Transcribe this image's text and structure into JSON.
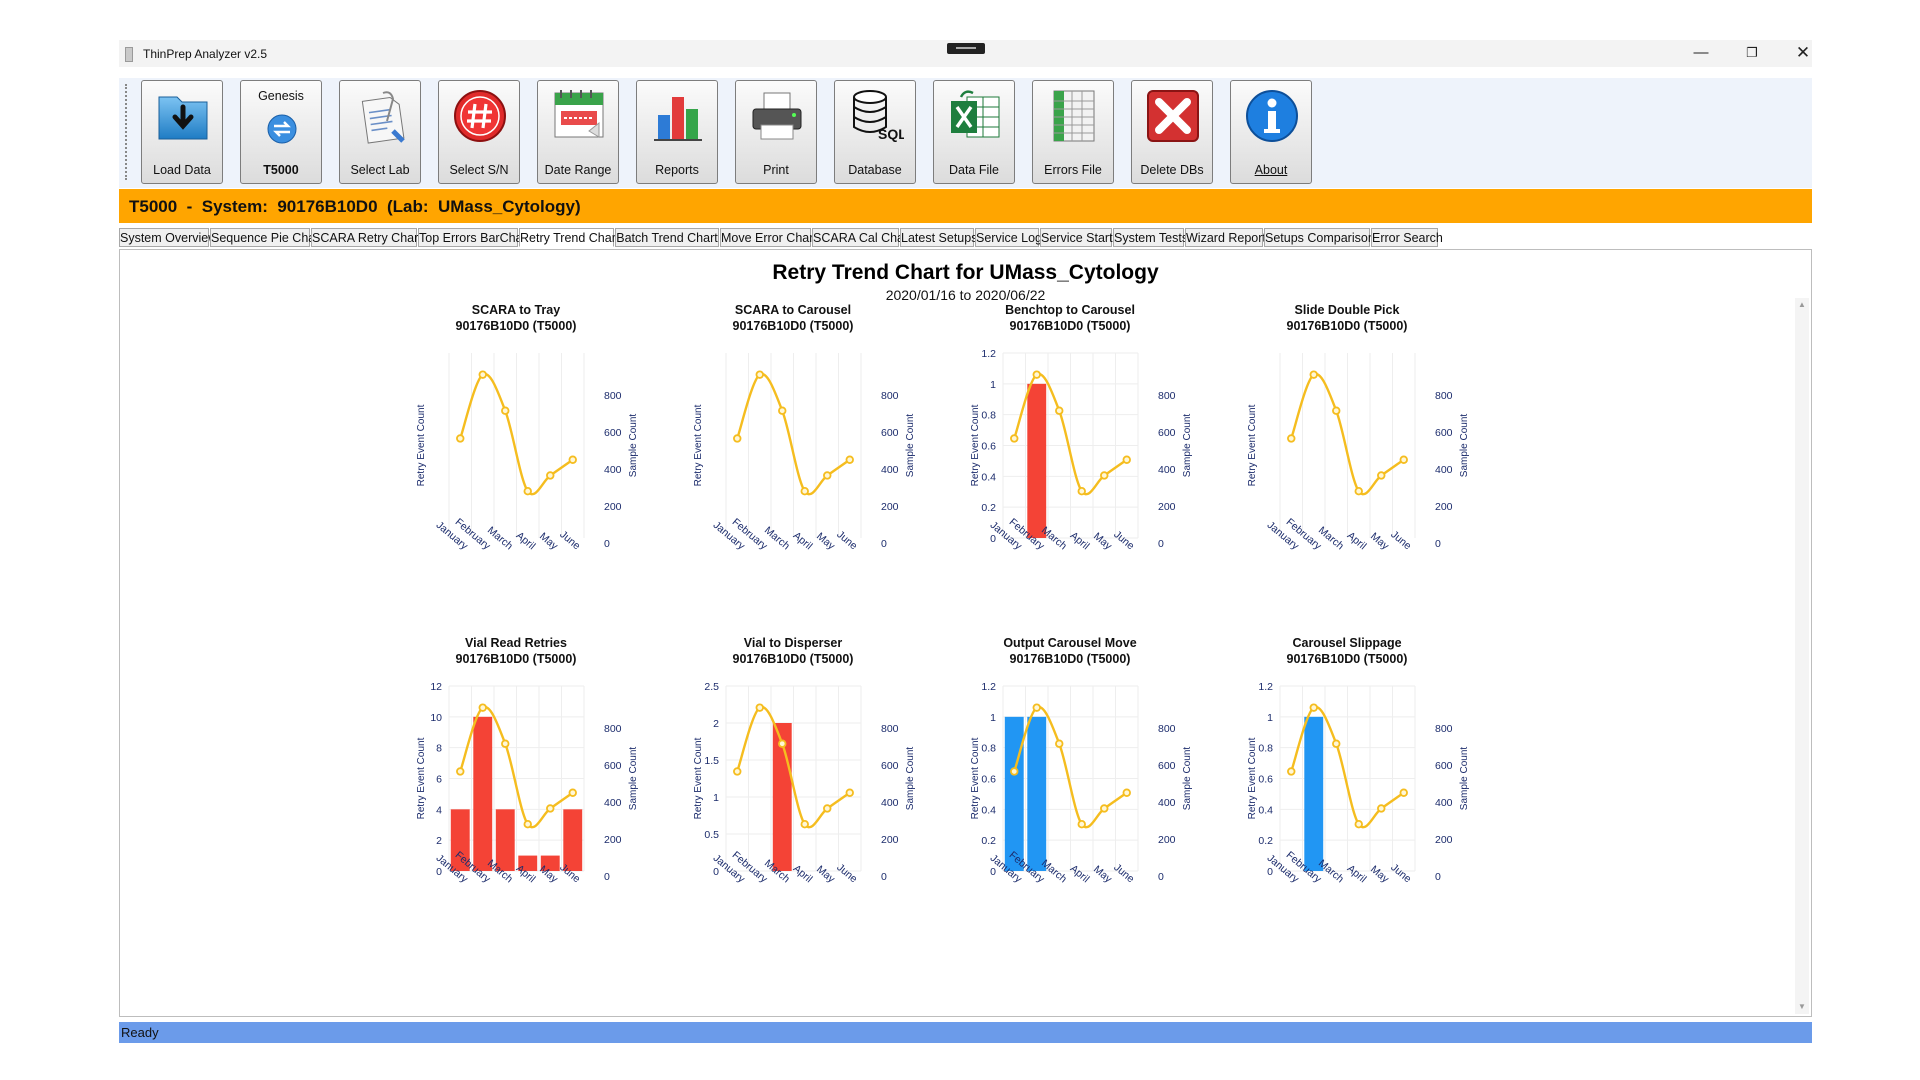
{
  "window": {
    "title": "ThinPrep Analyzer v2.5",
    "minimize": "—",
    "maximize": "❐",
    "close": "✕"
  },
  "toolbar": {
    "buttons": [
      {
        "label": "Load Data",
        "icon": "load-data-icon"
      },
      {
        "label": "T5000",
        "top_label": "Genesis",
        "icon": "switch-arrows-icon"
      },
      {
        "label": "Select Lab",
        "icon": "clipboard-icon"
      },
      {
        "label": "Select S/N",
        "icon": "hash-icon"
      },
      {
        "label": "Date Range",
        "icon": "calendar-icon"
      },
      {
        "label": "Reports",
        "icon": "bar-chart-icon"
      },
      {
        "label": "Print",
        "icon": "printer-icon"
      },
      {
        "label": "Database",
        "icon": "database-sql-icon"
      },
      {
        "label": "Data File",
        "icon": "excel-icon"
      },
      {
        "label": "Errors File",
        "icon": "spreadsheet-icon"
      },
      {
        "label": "Delete DBs",
        "icon": "delete-x-icon"
      },
      {
        "label": "About",
        "icon": "info-icon"
      }
    ]
  },
  "system_bar": {
    "title": "T5000  -  System:  90176B10D0  (Lab:  UMass_Cytology)"
  },
  "tabs": [
    {
      "label": "System Overview"
    },
    {
      "label": "Sequence Pie Chart"
    },
    {
      "label": "SCARA Retry Chart"
    },
    {
      "label": "Top Errors BarChart"
    },
    {
      "label": "Retry Trend Chart",
      "active": true
    },
    {
      "label": "Batch Trend Chart"
    },
    {
      "label": "Move Error Chart"
    },
    {
      "label": "SCARA Cal Chart"
    },
    {
      "label": "Latest Setups"
    },
    {
      "label": "Service Log"
    },
    {
      "label": "Service Starts"
    },
    {
      "label": "System Tests"
    },
    {
      "label": "Wizard Report"
    },
    {
      "label": "Setups Comparison"
    },
    {
      "label": "Error Search"
    }
  ],
  "content": {
    "title": "Retry Trend Chart for UMass_Cytology",
    "date_range": "2020/01/16 to 2020/06/22"
  },
  "status": {
    "text": "Ready"
  },
  "colors": {
    "line": "#f5bd1f",
    "red_bar": "#f44336",
    "blue_bar": "#2196f3",
    "status_bar": "#6b9bea",
    "system_bar": "#ffa500"
  },
  "chart_data": [
    {
      "type": "bar",
      "title": "SCARA to Tray",
      "subtitle": "90176B10D0 (T5000)",
      "categories": [
        "January",
        "February",
        "March",
        "April",
        "May",
        "June"
      ],
      "series": [
        {
          "name": "Retry Event Count",
          "values": [
            0,
            0,
            0,
            0,
            0,
            0
          ],
          "color": "#f44336"
        },
        {
          "name": "Sample Count",
          "type": "line",
          "axis": "right",
          "values": [
            565,
            910,
            715,
            280,
            365,
            450
          ]
        }
      ],
      "xlabel": "",
      "ylabel": "Retry Event Count",
      "y2label": "Sample Count",
      "yticks": [],
      "y2ticks": [
        "0",
        "200",
        "400",
        "600",
        "800"
      ],
      "ylim": [
        0,
        1
      ],
      "y2lim": [
        0,
        1000
      ]
    },
    {
      "type": "bar",
      "title": "SCARA to Carousel",
      "subtitle": "90176B10D0 (T5000)",
      "categories": [
        "January",
        "February",
        "March",
        "April",
        "May",
        "June"
      ],
      "series": [
        {
          "name": "Retry Event Count",
          "values": [
            0,
            0,
            0,
            0,
            0,
            0
          ],
          "color": "#f44336"
        },
        {
          "name": "Sample Count",
          "type": "line",
          "axis": "right",
          "values": [
            565,
            910,
            715,
            280,
            365,
            450
          ]
        }
      ],
      "xlabel": "",
      "ylabel": "Retry Event Count",
      "y2label": "Sample Count",
      "yticks": [],
      "y2ticks": [
        "0",
        "200",
        "400",
        "600",
        "800"
      ],
      "ylim": [
        0,
        1
      ],
      "y2lim": [
        0,
        1000
      ]
    },
    {
      "type": "bar",
      "title": "Benchtop to Carousel",
      "subtitle": "90176B10D0 (T5000)",
      "categories": [
        "January",
        "February",
        "March",
        "April",
        "May",
        "June"
      ],
      "series": [
        {
          "name": "Retry Event Count",
          "values": [
            0,
            1,
            0,
            0,
            0,
            0
          ],
          "color": "#f44336"
        },
        {
          "name": "Sample Count",
          "type": "line",
          "axis": "right",
          "values": [
            565,
            910,
            715,
            280,
            365,
            450
          ]
        }
      ],
      "xlabel": "",
      "ylabel": "Retry Event Count",
      "y2label": "Sample Count",
      "yticks": [
        "0",
        "0.2",
        "0.4",
        "0.6",
        "0.8",
        "1",
        "1.2"
      ],
      "y2ticks": [
        "0",
        "200",
        "400",
        "600",
        "800"
      ],
      "ylim": [
        0,
        1.2
      ],
      "y2lim": [
        0,
        1000
      ]
    },
    {
      "type": "bar",
      "title": "Slide Double Pick",
      "subtitle": "90176B10D0 (T5000)",
      "categories": [
        "January",
        "February",
        "March",
        "April",
        "May",
        "June"
      ],
      "series": [
        {
          "name": "Retry Event Count",
          "values": [
            0,
            0,
            0,
            0,
            0,
            0
          ],
          "color": "#f44336"
        },
        {
          "name": "Sample Count",
          "type": "line",
          "axis": "right",
          "values": [
            565,
            910,
            715,
            280,
            365,
            450
          ]
        }
      ],
      "xlabel": "",
      "ylabel": "Retry Event Count",
      "y2label": "Sample Count",
      "yticks": [],
      "y2ticks": [
        "0",
        "200",
        "400",
        "600",
        "800"
      ],
      "ylim": [
        0,
        1
      ],
      "y2lim": [
        0,
        1000
      ]
    },
    {
      "type": "bar",
      "title": "Vial Read Retries",
      "subtitle": "90176B10D0 (T5000)",
      "categories": [
        "January",
        "February",
        "March",
        "April",
        "May",
        "June"
      ],
      "series": [
        {
          "name": "Retry Event Count",
          "values": [
            4,
            10,
            4,
            1,
            1,
            4
          ],
          "color": "#f44336"
        },
        {
          "name": "Sample Count",
          "type": "line",
          "axis": "right",
          "values": [
            565,
            910,
            715,
            280,
            365,
            450
          ]
        }
      ],
      "xlabel": "",
      "ylabel": "Retry Event Count",
      "y2label": "Sample Count",
      "yticks": [
        "0",
        "2",
        "4",
        "6",
        "8",
        "10",
        "12"
      ],
      "y2ticks": [
        "0",
        "200",
        "400",
        "600",
        "800"
      ],
      "ylim": [
        0,
        12
      ],
      "y2lim": [
        0,
        1000
      ]
    },
    {
      "type": "bar",
      "title": "Vial to Disperser",
      "subtitle": "90176B10D0 (T5000)",
      "categories": [
        "January",
        "February",
        "March",
        "April",
        "May",
        "June"
      ],
      "series": [
        {
          "name": "Retry Event Count",
          "values": [
            0,
            0,
            2,
            0,
            0,
            0
          ],
          "color": "#f44336"
        },
        {
          "name": "Sample Count",
          "type": "line",
          "axis": "right",
          "values": [
            565,
            910,
            715,
            280,
            365,
            450
          ]
        }
      ],
      "xlabel": "",
      "ylabel": "Retry Event Count",
      "y2label": "Sample Count",
      "yticks": [
        "0",
        "0.5",
        "1",
        "1.5",
        "2",
        "2.5"
      ],
      "y2ticks": [
        "0",
        "200",
        "400",
        "600",
        "800"
      ],
      "ylim": [
        0,
        2.5
      ],
      "y2lim": [
        0,
        1000
      ]
    },
    {
      "type": "bar",
      "title": "Output Carousel Move",
      "subtitle": "90176B10D0 (T5000)",
      "categories": [
        "January",
        "February",
        "March",
        "April",
        "May",
        "June"
      ],
      "series": [
        {
          "name": "Retry Event Count",
          "values": [
            1,
            1,
            0,
            0,
            0,
            0
          ],
          "color": "#2196f3"
        },
        {
          "name": "Sample Count",
          "type": "line",
          "axis": "right",
          "values": [
            565,
            910,
            715,
            280,
            365,
            450
          ]
        }
      ],
      "xlabel": "",
      "ylabel": "Retry Event Count",
      "y2label": "Sample Count",
      "yticks": [
        "0",
        "0.2",
        "0.4",
        "0.6",
        "0.8",
        "1",
        "1.2"
      ],
      "y2ticks": [
        "0",
        "200",
        "400",
        "600",
        "800"
      ],
      "ylim": [
        0,
        1.2
      ],
      "y2lim": [
        0,
        1000
      ]
    },
    {
      "type": "bar",
      "title": "Carousel Slippage",
      "subtitle": "90176B10D0 (T5000)",
      "categories": [
        "January",
        "February",
        "March",
        "April",
        "May",
        "June"
      ],
      "series": [
        {
          "name": "Retry Event Count",
          "values": [
            0,
            1,
            0,
            0,
            0,
            0
          ],
          "color": "#2196f3"
        },
        {
          "name": "Sample Count",
          "type": "line",
          "axis": "right",
          "values": [
            565,
            910,
            715,
            280,
            365,
            450
          ]
        }
      ],
      "xlabel": "",
      "ylabel": "Retry Event Count",
      "y2label": "Sample Count",
      "yticks": [
        "0",
        "0.2",
        "0.4",
        "0.6",
        "0.8",
        "1",
        "1.2"
      ],
      "y2ticks": [
        "0",
        "200",
        "400",
        "600",
        "800"
      ],
      "ylim": [
        0,
        1.2
      ],
      "y2lim": [
        0,
        1000
      ]
    }
  ]
}
